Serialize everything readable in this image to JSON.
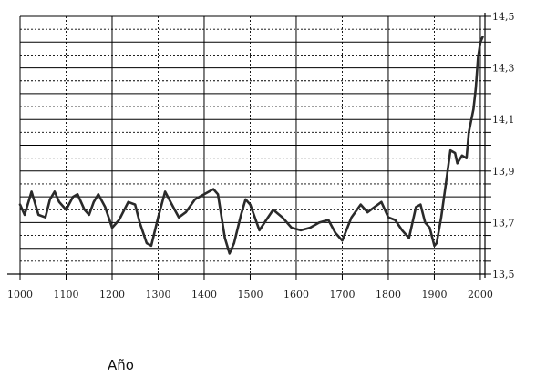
{
  "chart_data": {
    "type": "line",
    "title": "",
    "xlabel": "Año",
    "ylabel": "",
    "xlim": [
      1000,
      2010
    ],
    "ylim": [
      13.5,
      14.5
    ],
    "x_ticks": [
      1000,
      1100,
      1200,
      1300,
      1400,
      1500,
      1600,
      1700,
      1800,
      1900,
      2000
    ],
    "y_tick_labels": [
      {
        "value": 13.5,
        "label": "13,5"
      },
      {
        "value": 13.7,
        "label": "13,7"
      },
      {
        "value": 13.9,
        "label": "13,9"
      },
      {
        "value": 14.1,
        "label": "14,1"
      },
      {
        "value": 14.3,
        "label": "14,3"
      },
      {
        "value": 14.5,
        "label": "14,5"
      }
    ],
    "y_minor_step": 0.05,
    "grid": true,
    "y_axis_position": "right",
    "series": [
      {
        "values_x": [
          1000,
          1010,
          1025,
          1040,
          1055,
          1065,
          1075,
          1085,
          1100,
          1115,
          1125,
          1140,
          1150,
          1160,
          1170,
          1185,
          1200,
          1215,
          1235,
          1250,
          1260,
          1275,
          1285,
          1300,
          1315,
          1330,
          1345,
          1360,
          1380,
          1400,
          1420,
          1430,
          1445,
          1455,
          1465,
          1480,
          1490,
          1500,
          1520,
          1535,
          1550,
          1570,
          1590,
          1610,
          1630,
          1650,
          1670,
          1685,
          1700,
          1720,
          1740,
          1755,
          1770,
          1785,
          1800,
          1815,
          1830,
          1845,
          1860,
          1870,
          1880,
          1890,
          1900,
          1905,
          1915,
          1925,
          1935,
          1945,
          1950,
          1960,
          1970,
          1975,
          1985,
          1990,
          1995,
          2000,
          2005
        ],
        "values_y": [
          13.77,
          13.73,
          13.82,
          13.73,
          13.72,
          13.79,
          13.82,
          13.78,
          13.75,
          13.8,
          13.81,
          13.75,
          13.73,
          13.78,
          13.81,
          13.76,
          13.68,
          13.71,
          13.78,
          13.77,
          13.7,
          13.62,
          13.61,
          13.72,
          13.82,
          13.77,
          13.72,
          13.74,
          13.79,
          13.81,
          13.83,
          13.81,
          13.64,
          13.58,
          13.62,
          13.73,
          13.79,
          13.77,
          13.67,
          13.71,
          13.75,
          13.72,
          13.68,
          13.67,
          13.68,
          13.7,
          13.71,
          13.66,
          13.63,
          13.72,
          13.77,
          13.74,
          13.76,
          13.78,
          13.72,
          13.71,
          13.67,
          13.64,
          13.76,
          13.77,
          13.7,
          13.68,
          13.61,
          13.62,
          13.72,
          13.85,
          13.98,
          13.97,
          13.93,
          13.96,
          13.95,
          14.05,
          14.14,
          14.22,
          14.34,
          14.4,
          14.42
        ]
      }
    ]
  }
}
